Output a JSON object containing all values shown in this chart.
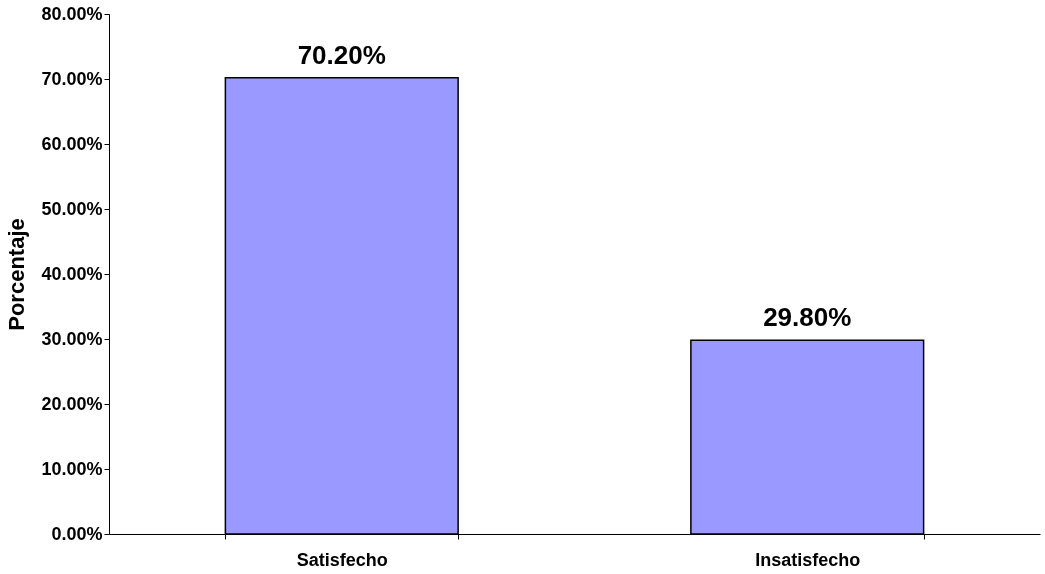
{
  "chart_data": {
    "type": "bar",
    "ylabel": "Porcentaje",
    "categories": [
      "Satisfecho",
      "Insatisfecho"
    ],
    "series": [
      {
        "color": "#9999ff",
        "values": [
          70.2,
          29.8
        ],
        "value_labels": [
          "70.20%",
          "29.80%"
        ]
      }
    ],
    "ylim": [
      0,
      80
    ],
    "yticks": [
      {
        "value": 0,
        "label": "0.00%"
      },
      {
        "value": 10,
        "label": "10.00%"
      },
      {
        "value": 20,
        "label": "20.00%"
      },
      {
        "value": 30,
        "label": "30.00%"
      },
      {
        "value": 40,
        "label": "40.00%"
      },
      {
        "value": 50,
        "label": "50.00%"
      },
      {
        "value": 60,
        "label": "60.00%"
      },
      {
        "value": 70,
        "label": "70.00%"
      },
      {
        "value": 80,
        "label": "80.00%"
      }
    ],
    "grid": false
  }
}
